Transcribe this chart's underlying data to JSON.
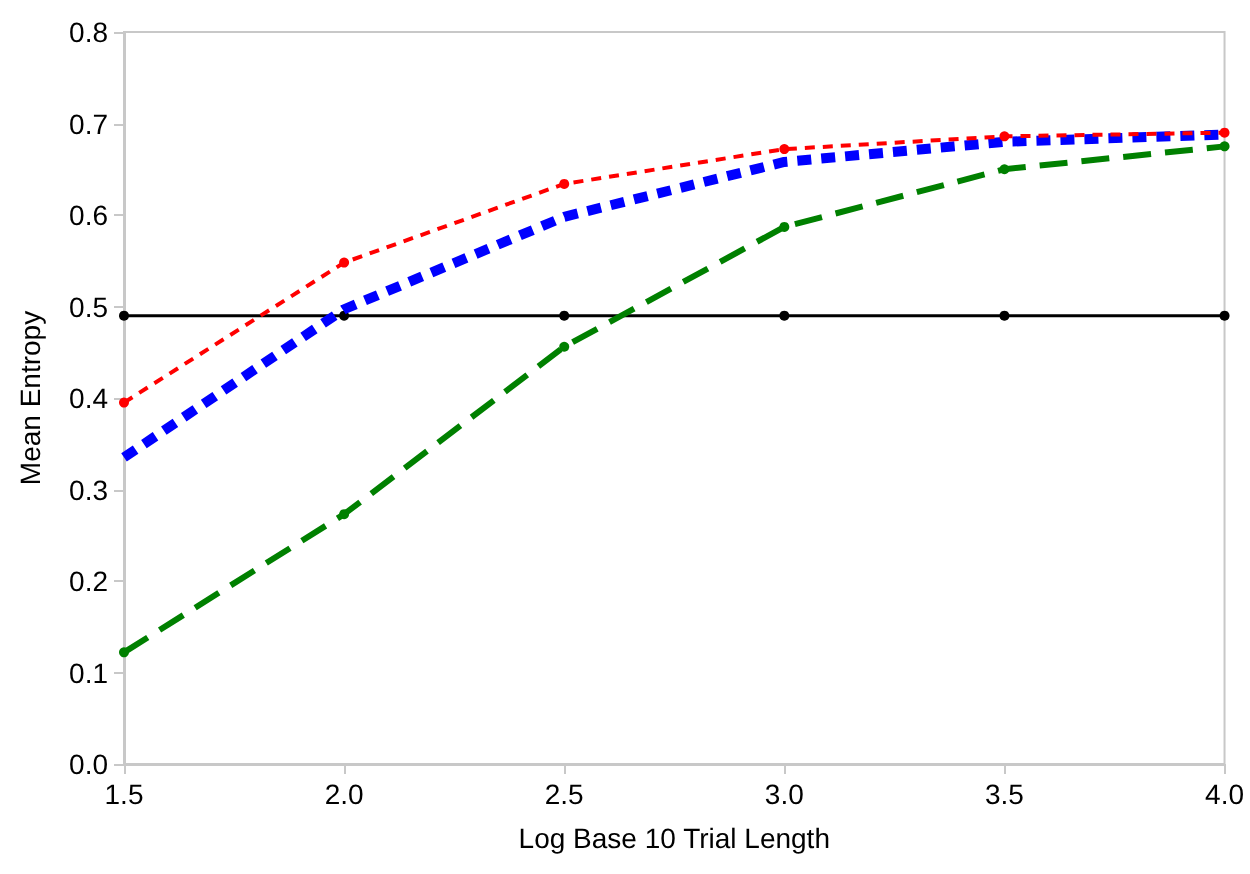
{
  "chart_data": {
    "type": "line",
    "xlabel": "Log Base 10 Trial Length",
    "ylabel": "Mean Entropy",
    "x": [
      1.5,
      2.0,
      2.5,
      3.0,
      3.5,
      4.0
    ],
    "series": [
      {
        "color": "#ff0000",
        "line_style": "dashed",
        "values": [
          0.395,
          0.548,
          0.634,
          0.672,
          0.686,
          0.69
        ]
      },
      {
        "color": "#0000ff",
        "line_style": "dashed",
        "marker": "none",
        "values": [
          0.335,
          0.497,
          0.598,
          0.658,
          0.68,
          0.688
        ]
      },
      {
        "color": "#008000",
        "line_style": "dashed",
        "values": [
          0.122,
          0.273,
          0.456,
          0.587,
          0.65,
          0.675
        ]
      },
      {
        "color": "#000000",
        "line_style": "solid",
        "values": [
          0.49,
          0.49,
          0.49,
          0.49,
          0.49,
          0.49
        ]
      }
    ],
    "marker": "circle",
    "xlim": [
      1.5,
      4.0
    ],
    "xticks": [
      1.5,
      {
        "value": 2,
        "label": "2.0"
      },
      2.5,
      {
        "value": 3,
        "label": "3.0"
      },
      3.5,
      {
        "value": 4,
        "label": "4.0"
      }
    ],
    "ylim": [
      0,
      0.8
    ],
    "yticks": [
      {
        "value": 0,
        "label": "0.0"
      },
      0.1,
      0.2,
      0.3,
      0.4,
      0.5,
      0.6,
      0.7,
      0.8
    ],
    "grid": false
  }
}
